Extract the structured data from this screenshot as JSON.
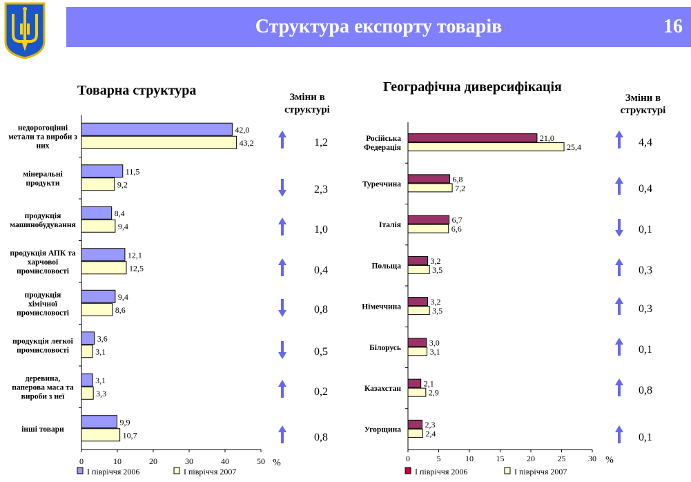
{
  "header": {
    "title": "Структура експорту товарів",
    "slide_number": "16",
    "banner_color": "#8080ff"
  },
  "left_panel": {
    "heading": "Товарна структура",
    "changes_heading": [
      "Зміни в",
      "структурі"
    ]
  },
  "right_panel": {
    "heading": "Географічна диверсифікація",
    "changes_heading": [
      "Зміни в",
      "структурі"
    ]
  },
  "chart_data": [
    {
      "type": "bar",
      "orientation": "horizontal",
      "title": "Товарна структура",
      "categories": [
        [
          "недорогоцінні",
          "метали та вироби з",
          "них"
        ],
        [
          "мінеральні",
          "продукти"
        ],
        [
          "продукція",
          "машинобудування"
        ],
        [
          "продукція АПК та",
          "харчової",
          "промисловості"
        ],
        [
          "продукція",
          "хімічної",
          "промисловості"
        ],
        [
          "продукція легкої",
          "промисловості"
        ],
        [
          "деревина,",
          "паперова маса та",
          "вироби з неї"
        ],
        [
          "інші товари"
        ]
      ],
      "series": [
        {
          "name": "І півріччя 2006",
          "color": "#9999ff",
          "values": [
            42.0,
            11.5,
            8.4,
            12.1,
            9.4,
            3.6,
            3.1,
            9.9
          ],
          "labels": [
            "42,0",
            "11,5",
            "8,4",
            "12,1",
            "9,4",
            "3,6",
            "3,1",
            "9,9"
          ]
        },
        {
          "name": "І півріччя 2007",
          "color": "#ffffcc",
          "values": [
            43.2,
            9.2,
            9.4,
            12.5,
            8.6,
            3.1,
            3.3,
            10.7
          ],
          "labels": [
            "43,2",
            "9,2",
            "9,4",
            "12,5",
            "8,6",
            "3,1",
            "3,3",
            "10,7"
          ]
        }
      ],
      "xlim": [
        0,
        50
      ],
      "xticks": [
        "0",
        "10",
        "20",
        "30",
        "40",
        "50"
      ],
      "unit": "%",
      "legend_position": "bottom",
      "changes": [
        {
          "direction": "up",
          "value": "1,2"
        },
        {
          "direction": "down",
          "value": "2,3"
        },
        {
          "direction": "up",
          "value": "1,0"
        },
        {
          "direction": "up",
          "value": "0,4"
        },
        {
          "direction": "down",
          "value": "0,8"
        },
        {
          "direction": "down",
          "value": "0,5"
        },
        {
          "direction": "up",
          "value": "0,2"
        },
        {
          "direction": "up",
          "value": "0,8"
        }
      ],
      "arrow_color": "#6666ee"
    },
    {
      "type": "bar",
      "orientation": "horizontal",
      "title": "Географічна диверсифікація",
      "categories": [
        [
          "Російська",
          "Федерація"
        ],
        [
          "Туреччина"
        ],
        [
          "Італія"
        ],
        [
          "Польща"
        ],
        [
          "Німеччина"
        ],
        [
          "Білорусь"
        ],
        [
          "Казахстан"
        ],
        [
          "Угорщина"
        ]
      ],
      "series": [
        {
          "name": "І півріччя 2006",
          "color": "#993366",
          "legend_color": "#cc0033",
          "values": [
            21.0,
            6.8,
            6.7,
            3.2,
            3.2,
            3.0,
            2.1,
            2.3
          ],
          "labels": [
            "21,0",
            "6,8",
            "6,7",
            "3,2",
            "3,2",
            "3,0",
            "2,1",
            "2,3"
          ]
        },
        {
          "name": "І півріччя 2007",
          "color": "#ffffcc",
          "values": [
            25.4,
            7.2,
            6.6,
            3.5,
            3.5,
            3.1,
            2.9,
            2.4
          ],
          "labels": [
            "25,4",
            "7,2",
            "6,6",
            "3,5",
            "3,5",
            "3,1",
            "2,9",
            "2,4"
          ]
        }
      ],
      "xlim": [
        0,
        30
      ],
      "xticks": [
        "0",
        "5",
        "10",
        "15",
        "20",
        "25",
        "30"
      ],
      "unit": "%",
      "legend_position": "bottom",
      "changes": [
        {
          "direction": "up",
          "value": "4,4"
        },
        {
          "direction": "up",
          "value": "0,4"
        },
        {
          "direction": "down",
          "value": "0,1"
        },
        {
          "direction": "up",
          "value": "0,3"
        },
        {
          "direction": "up",
          "value": "0,3"
        },
        {
          "direction": "up",
          "value": "0,1"
        },
        {
          "direction": "up",
          "value": "0,8"
        },
        {
          "direction": "up",
          "value": "0,1"
        }
      ],
      "arrow_color": "#6666ee"
    }
  ]
}
